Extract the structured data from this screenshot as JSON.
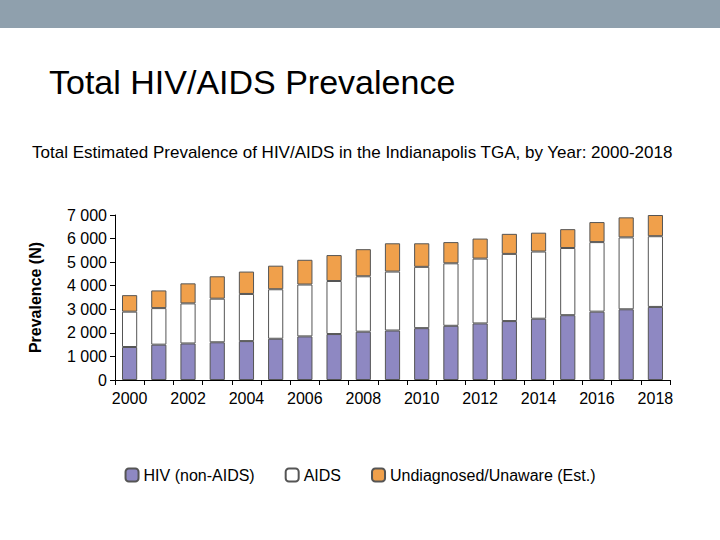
{
  "chart_data": {
    "type": "bar",
    "title": "Total HIV/AIDS Prevalence",
    "subtitle": "Total Estimated Prevalence of HIV/AIDS in the Indianapolis TGA, by Year: 2000-2018",
    "y_label": "Prevalence (N)",
    "categories": [
      "2000",
      null,
      "2002",
      null,
      "2004",
      null,
      "2006",
      null,
      "2008",
      null,
      "2010",
      null,
      "2012",
      null,
      "2014",
      null,
      "2016",
      null,
      "2018"
    ],
    "series": [
      {
        "name": "HIV (non-AIDS)",
        "color": "#8e88c2",
        "values": [
          1400,
          1500,
          1550,
          1600,
          1650,
          1750,
          1850,
          1950,
          2050,
          2100,
          2200,
          2300,
          2400,
          2500,
          2600,
          2750,
          2900,
          3000,
          3100
        ]
      },
      {
        "name": "AIDS",
        "color": "#ffffff",
        "values": [
          1500,
          1550,
          1700,
          1850,
          2000,
          2100,
          2200,
          2250,
          2350,
          2500,
          2600,
          2650,
          2750,
          2850,
          2850,
          2850,
          2950,
          3050,
          3000
        ]
      },
      {
        "name": "Undiagnosed/Unaware (Est.)",
        "color": "#f0a04b",
        "values": [
          700,
          750,
          850,
          950,
          950,
          1000,
          1050,
          1100,
          1150,
          1200,
          1000,
          900,
          850,
          850,
          800,
          800,
          850,
          850,
          900
        ]
      }
    ],
    "ylim": [
      0,
      7000
    ],
    "yticks": [
      0,
      {
        "value": 1000,
        "label": "1 000"
      },
      {
        "value": 2000,
        "label": "2 000"
      },
      {
        "value": 3000,
        "label": "3 000"
      },
      {
        "value": 4000,
        "label": "4 000"
      },
      {
        "value": 5000,
        "label": "5 000"
      },
      {
        "value": 6000,
        "label": "6 000"
      },
      {
        "value": 7000,
        "label": "7 000"
      }
    ],
    "stacked": true,
    "legend": "bottom",
    "grid": false
  }
}
